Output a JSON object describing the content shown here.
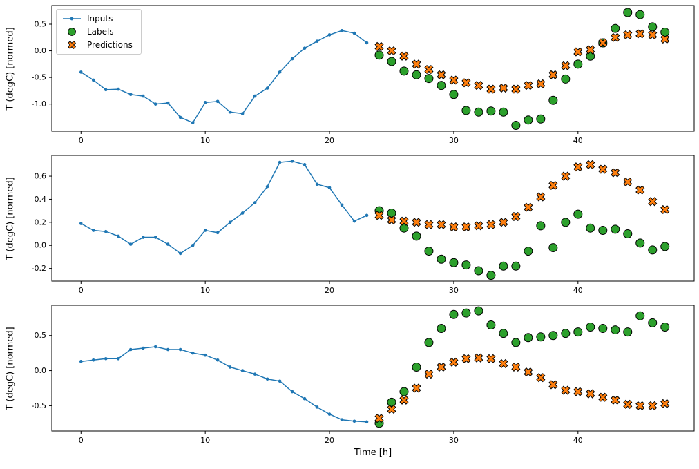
{
  "figure": {
    "background": "#ffffff",
    "xlabel": "Time [h]"
  },
  "colors": {
    "inputs": "#1f77b4",
    "labels": "#2ca02c",
    "predictions": "#ff7f0e",
    "axis": "#000000",
    "legend_border": "#cccccc"
  },
  "legend": {
    "position": "upper left",
    "items": [
      {
        "label": "Inputs",
        "marker": "line-dot",
        "color": "#1f77b4"
      },
      {
        "label": "Labels",
        "marker": "circle",
        "color": "#2ca02c"
      },
      {
        "label": "Predictions",
        "marker": "x",
        "color": "#ff7f0e"
      }
    ]
  },
  "chart_data": [
    {
      "type": "line",
      "title": "",
      "xlabel": "",
      "ylabel": "T (degC) [normed]",
      "xlim": [
        -2.35,
        49.35
      ],
      "ylim": [
        -1.51,
        0.85
      ],
      "xticks": [
        0,
        10,
        20,
        30,
        40
      ],
      "yticks": [
        -1.0,
        -0.5,
        0.0,
        0.5
      ],
      "grid": false,
      "series": [
        {
          "name": "Inputs",
          "marker": "dot-line",
          "color": "#1f77b4",
          "x": [
            0,
            1,
            2,
            3,
            4,
            5,
            6,
            7,
            8,
            9,
            10,
            11,
            12,
            13,
            14,
            15,
            16,
            17,
            18,
            19,
            20,
            21,
            22,
            23
          ],
          "y": [
            -0.4,
            -0.55,
            -0.73,
            -0.72,
            -0.82,
            -0.85,
            -1.0,
            -0.98,
            -1.25,
            -1.35,
            -0.97,
            -0.95,
            -1.15,
            -1.18,
            -0.85,
            -0.7,
            -0.4,
            -0.15,
            0.05,
            0.18,
            0.3,
            0.38,
            0.33,
            0.15
          ]
        },
        {
          "name": "Labels",
          "marker": "circle",
          "color": "#2ca02c",
          "x": [
            24,
            25,
            26,
            27,
            28,
            29,
            30,
            31,
            32,
            33,
            34,
            35,
            36,
            37,
            38,
            39,
            40,
            41,
            42,
            43,
            44,
            45,
            46,
            47
          ],
          "y": [
            -0.08,
            -0.2,
            -0.38,
            -0.45,
            -0.52,
            -0.65,
            -0.82,
            -1.12,
            -1.15,
            -1.13,
            -1.15,
            -1.4,
            -1.3,
            -1.28,
            -0.93,
            -0.53,
            -0.25,
            -0.1,
            0.15,
            0.42,
            0.72,
            0.68,
            0.45,
            0.35
          ]
        },
        {
          "name": "Predictions",
          "marker": "x",
          "color": "#ff7f0e",
          "x": [
            24,
            25,
            26,
            27,
            28,
            29,
            30,
            31,
            32,
            33,
            34,
            35,
            36,
            37,
            38,
            39,
            40,
            41,
            42,
            43,
            44,
            45,
            46,
            47
          ],
          "y": [
            0.08,
            0.0,
            -0.1,
            -0.25,
            -0.35,
            -0.45,
            -0.55,
            -0.6,
            -0.65,
            -0.72,
            -0.7,
            -0.72,
            -0.65,
            -0.62,
            -0.45,
            -0.28,
            -0.02,
            0.02,
            0.15,
            0.25,
            0.3,
            0.32,
            0.3,
            0.22
          ]
        }
      ]
    },
    {
      "type": "line",
      "title": "",
      "xlabel": "",
      "ylabel": "T (degC) [normed]",
      "xlim": [
        -2.35,
        49.35
      ],
      "ylim": [
        -0.31,
        0.78
      ],
      "xticks": [
        0,
        10,
        20,
        30,
        40
      ],
      "yticks": [
        -0.2,
        0.0,
        0.2,
        0.4,
        0.6
      ],
      "grid": false,
      "series": [
        {
          "name": "Inputs",
          "marker": "dot-line",
          "color": "#1f77b4",
          "x": [
            0,
            1,
            2,
            3,
            4,
            5,
            6,
            7,
            8,
            9,
            10,
            11,
            12,
            13,
            14,
            15,
            16,
            17,
            18,
            19,
            20,
            21,
            22,
            23
          ],
          "y": [
            0.19,
            0.13,
            0.12,
            0.08,
            0.01,
            0.07,
            0.07,
            0.01,
            -0.07,
            0.0,
            0.13,
            0.11,
            0.2,
            0.28,
            0.37,
            0.51,
            0.72,
            0.73,
            0.7,
            0.53,
            0.5,
            0.35,
            0.21,
            0.26
          ]
        },
        {
          "name": "Labels",
          "marker": "circle",
          "color": "#2ca02c",
          "x": [
            24,
            25,
            26,
            27,
            28,
            29,
            30,
            31,
            32,
            33,
            34,
            35,
            36,
            37,
            38,
            39,
            40,
            41,
            42,
            43,
            44,
            45,
            46,
            47
          ],
          "y": [
            0.3,
            0.28,
            0.15,
            0.08,
            -0.05,
            -0.12,
            -0.15,
            -0.17,
            -0.22,
            -0.26,
            -0.18,
            -0.18,
            -0.05,
            0.17,
            -0.02,
            0.2,
            0.27,
            0.15,
            0.13,
            0.14,
            0.1,
            0.02,
            -0.04,
            -0.01
          ]
        },
        {
          "name": "Predictions",
          "marker": "x",
          "color": "#ff7f0e",
          "x": [
            24,
            25,
            26,
            27,
            28,
            29,
            30,
            31,
            32,
            33,
            34,
            35,
            36,
            37,
            38,
            39,
            40,
            41,
            42,
            43,
            44,
            45,
            46,
            47
          ],
          "y": [
            0.26,
            0.22,
            0.21,
            0.2,
            0.18,
            0.18,
            0.16,
            0.16,
            0.17,
            0.18,
            0.2,
            0.25,
            0.33,
            0.42,
            0.52,
            0.6,
            0.68,
            0.7,
            0.66,
            0.63,
            0.55,
            0.48,
            0.38,
            0.31
          ]
        }
      ]
    },
    {
      "type": "line",
      "title": "",
      "xlabel": "Time [h]",
      "ylabel": "T (degC) [normed]",
      "xlim": [
        -2.35,
        49.35
      ],
      "ylim": [
        -0.86,
        0.93
      ],
      "xticks": [
        0,
        10,
        20,
        30,
        40
      ],
      "yticks": [
        -0.5,
        0.0,
        0.5
      ],
      "grid": false,
      "series": [
        {
          "name": "Inputs",
          "marker": "dot-line",
          "color": "#1f77b4",
          "x": [
            0,
            1,
            2,
            3,
            4,
            5,
            6,
            7,
            8,
            9,
            10,
            11,
            12,
            13,
            14,
            15,
            16,
            17,
            18,
            19,
            20,
            21,
            22,
            23
          ],
          "y": [
            0.13,
            0.15,
            0.17,
            0.17,
            0.3,
            0.32,
            0.34,
            0.3,
            0.3,
            0.25,
            0.22,
            0.15,
            0.05,
            0.0,
            -0.05,
            -0.12,
            -0.15,
            -0.3,
            -0.4,
            -0.52,
            -0.62,
            -0.7,
            -0.72,
            -0.73
          ]
        },
        {
          "name": "Labels",
          "marker": "circle",
          "color": "#2ca02c",
          "x": [
            24,
            25,
            26,
            27,
            28,
            29,
            30,
            31,
            32,
            33,
            34,
            35,
            36,
            37,
            38,
            39,
            40,
            41,
            42,
            43,
            44,
            45,
            46,
            47
          ],
          "y": [
            -0.75,
            -0.45,
            -0.3,
            0.05,
            0.4,
            0.6,
            0.8,
            0.82,
            0.85,
            0.65,
            0.53,
            0.4,
            0.47,
            0.48,
            0.5,
            0.53,
            0.55,
            0.62,
            0.6,
            0.58,
            0.55,
            0.78,
            0.68,
            0.62
          ]
        },
        {
          "name": "Predictions",
          "marker": "x",
          "color": "#ff7f0e",
          "x": [
            24,
            25,
            26,
            27,
            28,
            29,
            30,
            31,
            32,
            33,
            34,
            35,
            36,
            37,
            38,
            39,
            40,
            41,
            42,
            43,
            44,
            45,
            46,
            47
          ],
          "y": [
            -0.68,
            -0.55,
            -0.42,
            -0.25,
            -0.05,
            0.05,
            0.12,
            0.17,
            0.18,
            0.17,
            0.1,
            0.05,
            -0.02,
            -0.1,
            -0.2,
            -0.28,
            -0.3,
            -0.33,
            -0.38,
            -0.42,
            -0.48,
            -0.5,
            -0.5,
            -0.47
          ]
        }
      ]
    }
  ]
}
